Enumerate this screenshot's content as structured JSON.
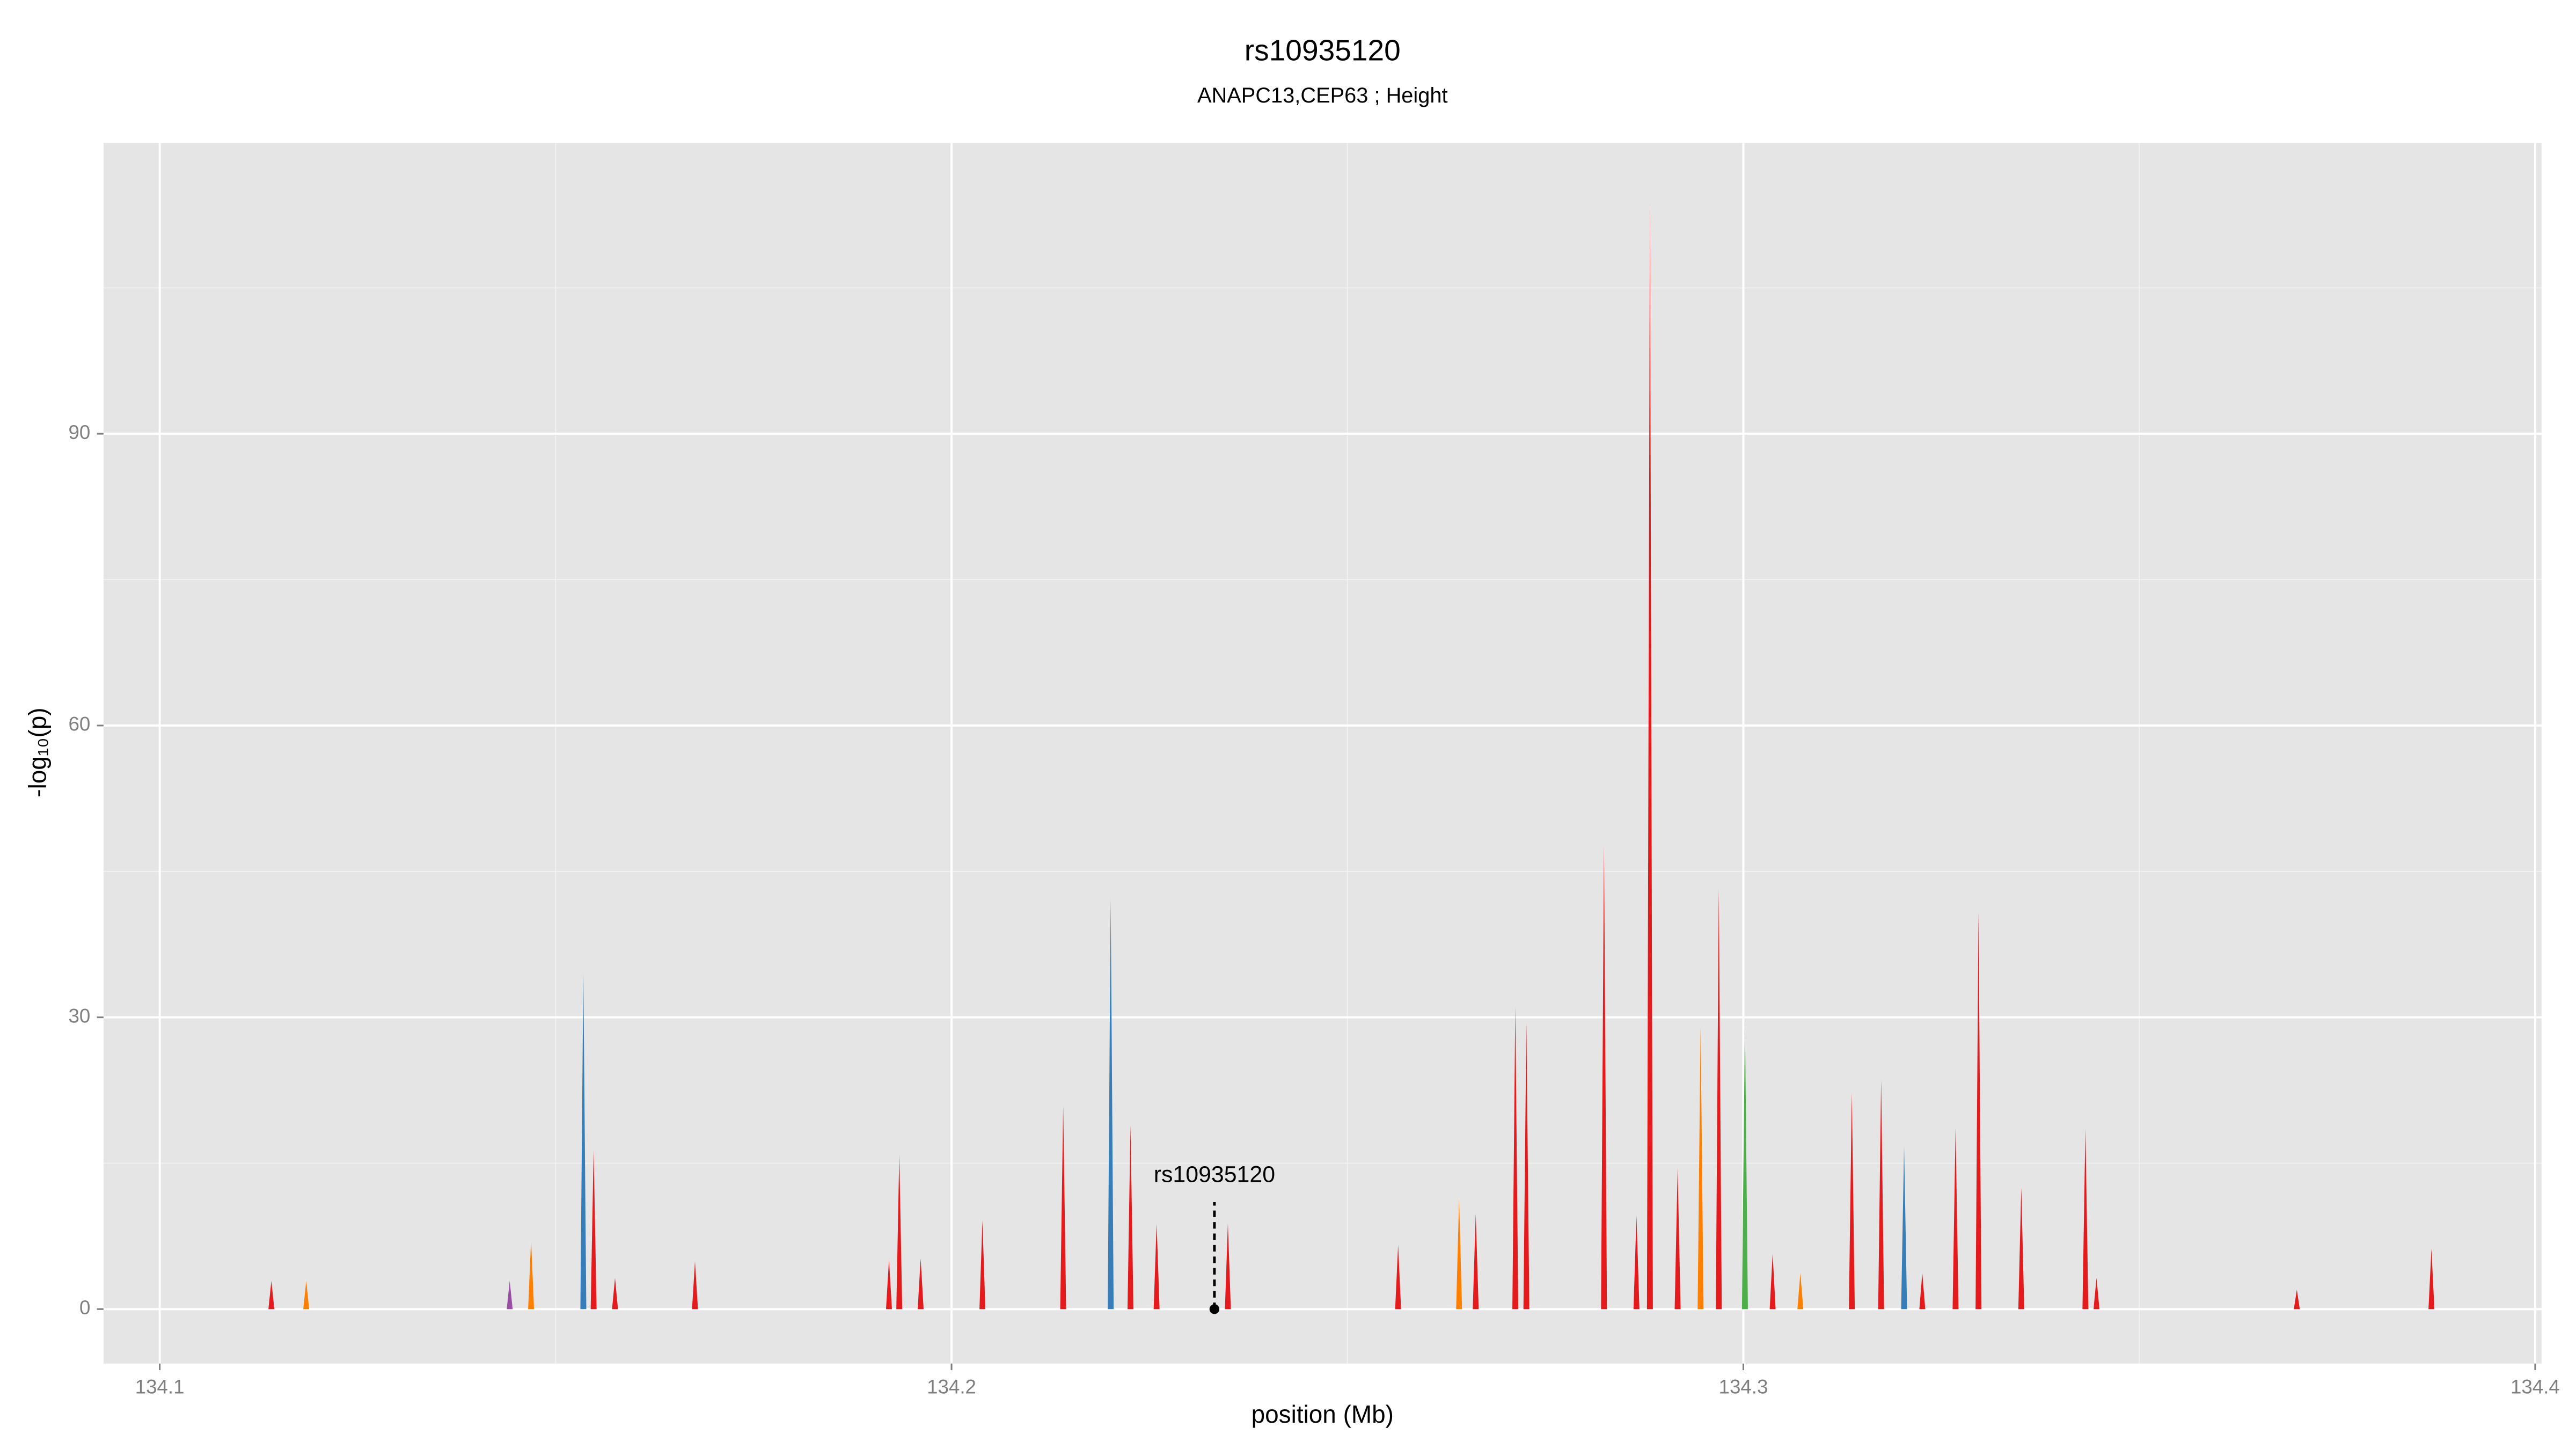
{
  "chart_data": {
    "type": "spike",
    "title": "rs10935120",
    "subtitle": "ANAPC13,CEP63 ; Height",
    "x_label": "position (Mb)",
    "y_label": "-log₁₀(p)",
    "xlim": [
      134.0929,
      134.4008
    ],
    "ylim": [
      -5.6,
      119.9
    ],
    "xticks": [
      134.1,
      134.2,
      134.3,
      134.4
    ],
    "yticks": [
      0,
      30,
      60,
      90
    ],
    "grid": true,
    "background": "#e5e5e5",
    "series": [
      {
        "color": "#e41a1c",
        "x": [
          134.1141,
          134.1548,
          134.1575,
          134.1676,
          134.1921,
          134.1934,
          134.1961,
          134.2039,
          134.2141,
          134.2226,
          134.2259,
          134.2349,
          134.2564,
          134.2662,
          134.2712,
          134.2726,
          134.2824,
          134.2865,
          134.2882,
          134.2917,
          134.2969,
          134.3037,
          134.3137,
          134.3174,
          134.3226,
          134.3268,
          134.3297,
          134.3351,
          134.3432,
          134.3446,
          134.3699,
          134.3869
        ],
        "values": [
          2.9,
          16.4,
          3.2,
          4.9,
          5.1,
          15.9,
          5.2,
          9.1,
          20.9,
          18.9,
          8.8,
          8.8,
          6.6,
          9.8,
          31.1,
          29.4,
          47.8,
          9.6,
          114.0,
          14.5,
          43.2,
          5.7,
          22.3,
          23.6,
          3.7,
          18.6,
          40.9,
          12.5,
          18.6,
          3.2,
          2.0,
          6.2
        ]
      },
      {
        "color": "#377eb8",
        "x": [
          134.1535,
          134.2201,
          134.3203
        ],
        "values": [
          34.6,
          42.2,
          16.7
        ]
      },
      {
        "color": "#ff7f00",
        "x": [
          134.1185,
          134.1469,
          134.2641,
          134.2946,
          134.3072
        ],
        "values": [
          2.9,
          7.1,
          11.3,
          29.0,
          3.7
        ]
      },
      {
        "color": "#4daf4a",
        "x": [
          134.3002
        ],
        "values": [
          29.9
        ]
      },
      {
        "color": "#984ea3",
        "x": [
          134.1442
        ],
        "values": [
          2.9
        ]
      }
    ],
    "annotation": {
      "text": "rs10935120",
      "x": 134.2332,
      "y": 0,
      "line_top": 11
    }
  }
}
